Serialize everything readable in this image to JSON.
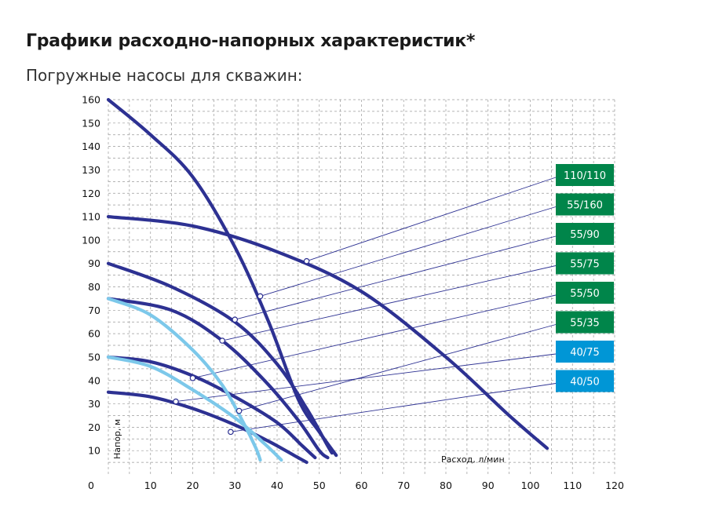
{
  "title": "Графики расходно-напорных характеристик*",
  "subtitle": "Погружные насосы для скважин:",
  "chart_data": {
    "type": "line",
    "xlabel": "Расход, л/мин",
    "ylabel": "Напор, м",
    "xlim": [
      0,
      120
    ],
    "ylim": [
      0,
      160
    ],
    "x_ticks": [
      "0",
      "10",
      "20",
      "30",
      "40",
      "50",
      "60",
      "70",
      "80",
      "90",
      "100",
      "110",
      "120"
    ],
    "y_ticks": [
      "160",
      "150",
      "140",
      "130",
      "120",
      "110",
      "100",
      "90",
      "80",
      "70",
      "60",
      "50",
      "40",
      "30",
      "20",
      "10"
    ],
    "grid": true,
    "series": [
      {
        "name": "110/110",
        "color": "#2d3192",
        "badge_color": "#00854a",
        "points": [
          [
            0,
            110
          ],
          [
            20,
            106
          ],
          [
            40,
            95
          ],
          [
            60,
            78
          ],
          [
            80,
            50
          ],
          [
            95,
            25
          ],
          [
            104,
            11
          ]
        ],
        "marker": [
          47,
          91
        ]
      },
      {
        "name": "55/160",
        "color": "#2d3192",
        "badge_color": "#00854a",
        "points": [
          [
            0,
            160
          ],
          [
            10,
            145
          ],
          [
            20,
            127
          ],
          [
            30,
            97
          ],
          [
            38,
            65
          ],
          [
            45,
            32
          ],
          [
            50,
            18
          ],
          [
            54,
            8
          ]
        ],
        "marker": [
          36,
          76
        ]
      },
      {
        "name": "55/90",
        "color": "#2d3192",
        "badge_color": "#00854a",
        "points": [
          [
            0,
            90
          ],
          [
            15,
            80
          ],
          [
            30,
            65
          ],
          [
            40,
            47
          ],
          [
            47,
            28
          ],
          [
            52,
            12
          ],
          [
            53,
            9
          ]
        ],
        "marker": [
          30,
          66
        ]
      },
      {
        "name": "55/75",
        "color": "#2d3192",
        "badge_color": "#00854a",
        "points": [
          [
            0,
            75
          ],
          [
            15,
            70
          ],
          [
            27,
            57
          ],
          [
            37,
            40
          ],
          [
            45,
            23
          ],
          [
            50,
            10
          ],
          [
            52,
            7
          ]
        ],
        "marker": [
          27,
          57
        ]
      },
      {
        "name": "55/50",
        "color": "#2d3192",
        "badge_color": "#00854a",
        "points": [
          [
            0,
            50
          ],
          [
            10,
            48
          ],
          [
            20,
            42
          ],
          [
            30,
            33
          ],
          [
            40,
            22
          ],
          [
            46,
            12
          ],
          [
            49,
            7
          ]
        ],
        "marker": [
          20,
          41
        ]
      },
      {
        "name": "55/35",
        "color": "#2d3192",
        "badge_color": "#00854a",
        "points": [
          [
            0,
            35
          ],
          [
            10,
            33
          ],
          [
            20,
            28
          ],
          [
            30,
            21
          ],
          [
            38,
            14
          ],
          [
            44,
            8
          ],
          [
            47,
            5
          ]
        ],
        "marker": [
          31,
          27
        ]
      },
      {
        "name": "40/75",
        "color": "#7cc8ea",
        "badge_color": "#0096d6",
        "points": [
          [
            0,
            75
          ],
          [
            10,
            68
          ],
          [
            20,
            53
          ],
          [
            27,
            38
          ],
          [
            32,
            22
          ],
          [
            35,
            11
          ],
          [
            36,
            6
          ]
        ],
        "marker": [
          16,
          31
        ]
      },
      {
        "name": "40/50",
        "color": "#7cc8ea",
        "badge_color": "#0096d6",
        "points": [
          [
            0,
            50
          ],
          [
            10,
            46
          ],
          [
            20,
            36
          ],
          [
            30,
            24
          ],
          [
            37,
            13
          ],
          [
            41,
            6
          ]
        ],
        "marker": [
          29,
          18
        ]
      }
    ]
  }
}
